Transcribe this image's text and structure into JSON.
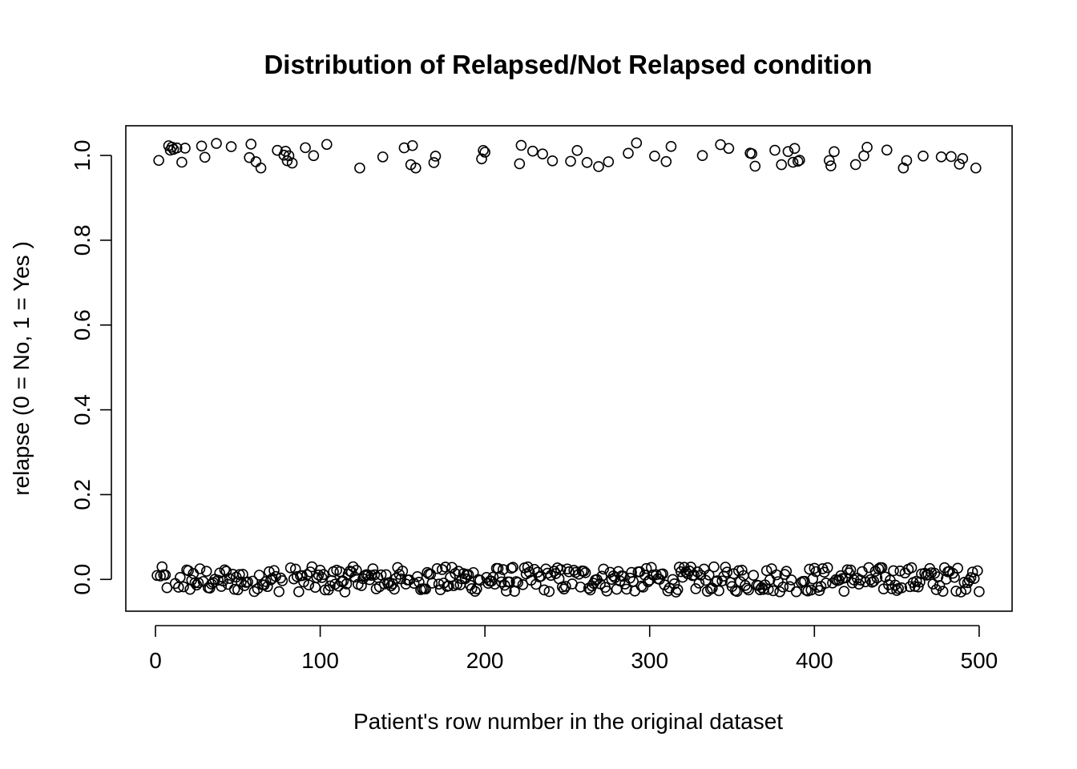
{
  "chart_data": {
    "type": "scatter",
    "title": "Distribution of Relapsed/Not Relapsed condition",
    "xlabel": "Patient's row number in the original dataset",
    "ylabel": "relapse (0 = No,    1 = Yes )",
    "xlim": [
      -18,
      520
    ],
    "ylim": [
      -0.075,
      1.07
    ],
    "x_ticks": [
      0,
      100,
      200,
      300,
      400,
      500
    ],
    "x_tick_labels": [
      "0",
      "100",
      "200",
      "300",
      "400",
      "500"
    ],
    "y_ticks": [
      0.0,
      0.2,
      0.4,
      0.6,
      0.8,
      1.0
    ],
    "y_tick_labels": [
      "0.0",
      "0.2",
      "0.4",
      "0.6",
      "0.8",
      "1.0"
    ],
    "grid": false,
    "legend": "none",
    "relapsed_rows": [
      2,
      8,
      9,
      10,
      11,
      13,
      16,
      18,
      28,
      30,
      37,
      46,
      57,
      58,
      61,
      64,
      74,
      78,
      79,
      80,
      81,
      83,
      91,
      96,
      104,
      124,
      138,
      151,
      155,
      156,
      158,
      169,
      170,
      198,
      199,
      200,
      221,
      222,
      229,
      235,
      241,
      252,
      256,
      262,
      269,
      275,
      287,
      292,
      303,
      310,
      313,
      332,
      343,
      348,
      361,
      362,
      364,
      376,
      380,
      384,
      387,
      388,
      390,
      391,
      409,
      410,
      412,
      425,
      430,
      432,
      444,
      454,
      456,
      466,
      477,
      483,
      488,
      490,
      498
    ],
    "n_rows": 500,
    "jitter": 0.03
  }
}
